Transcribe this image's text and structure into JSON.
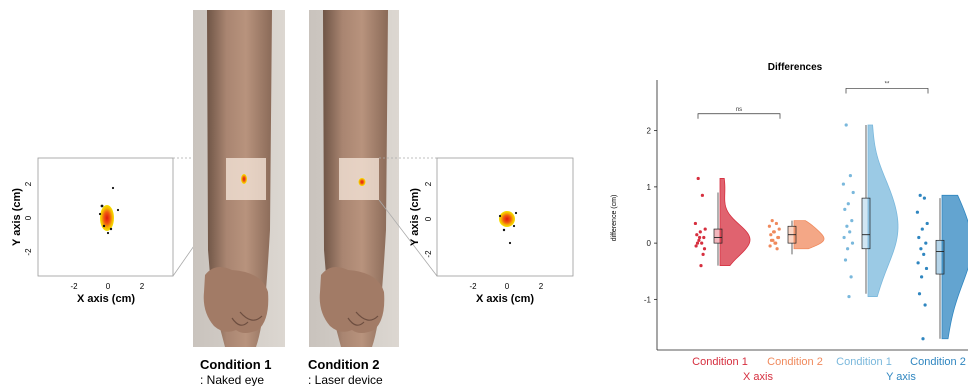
{
  "left_panel": {
    "scatter_left": {
      "ylabel": "Y axis (cm)",
      "xlabel": "X axis (cm)",
      "xticks": [
        "-2",
        "0",
        "2"
      ],
      "yticks": [
        "2",
        "0",
        "-2"
      ]
    },
    "scatter_right": {
      "ylabel": "Y axis (cm)",
      "xlabel": "X axis (cm)",
      "xticks": [
        "-2",
        "0",
        "2"
      ],
      "yticks": [
        "2",
        "0",
        "-2"
      ]
    },
    "condition1": {
      "title": "Condition 1",
      "subtitle": ": Naked eye"
    },
    "condition2": {
      "title": "Condition 2",
      "subtitle": ": Laser device"
    }
  },
  "chart_data": {
    "type": "raincloud",
    "title": "Differences",
    "ylabel": "difference (cm)",
    "ylim": [
      -1.9,
      2.9
    ],
    "yticks": [
      -1,
      0,
      1,
      2
    ],
    "grid": false,
    "groups": [
      {
        "label": "Condition 1",
        "axis": "X axis",
        "color": "#d62f3f",
        "points": [
          1.15,
          0.85,
          0.35,
          0.25,
          0.2,
          0.15,
          0.1,
          0.05,
          0.0,
          -0.05,
          -0.1,
          0.1,
          0.0,
          -0.2,
          -0.4
        ],
        "box": {
          "min": -0.4,
          "q1": 0.0,
          "median": 0.1,
          "q3": 0.25,
          "max": 0.9
        }
      },
      {
        "label": "Condition 2",
        "axis": "X axis",
        "color": "#f08a5d",
        "points": [
          0.4,
          0.35,
          0.3,
          0.25,
          0.2,
          0.15,
          0.1,
          0.05,
          0.0,
          -0.05,
          0.1,
          0.2,
          0.05,
          -0.1,
          0.0
        ],
        "box": {
          "min": -0.2,
          "q1": 0.0,
          "median": 0.15,
          "q3": 0.3,
          "max": 0.4
        }
      },
      {
        "label": "Condition 1",
        "axis": "Y axis",
        "color": "#7ab8dc",
        "points": [
          2.1,
          1.2,
          1.05,
          0.9,
          0.7,
          0.6,
          0.4,
          0.3,
          0.2,
          0.1,
          0.0,
          -0.1,
          -0.3,
          -0.6,
          -0.95
        ],
        "box": {
          "min": -0.9,
          "q1": -0.1,
          "median": 0.15,
          "q3": 0.8,
          "max": 2.1
        }
      },
      {
        "label": "Condition 2",
        "axis": "Y axis",
        "color": "#2f86c0",
        "points": [
          0.85,
          0.8,
          0.55,
          0.35,
          0.25,
          0.1,
          0.0,
          -0.1,
          -0.2,
          -0.35,
          -0.45,
          -0.6,
          -0.9,
          -1.1,
          -1.7
        ],
        "box": {
          "min": -1.7,
          "q1": -0.55,
          "median": -0.15,
          "q3": 0.05,
          "max": 0.8
        }
      }
    ],
    "significance": [
      {
        "groups": [
          0,
          1
        ],
        "label": "ns",
        "y": 2.3
      },
      {
        "groups": [
          2,
          3
        ],
        "label": "**",
        "y": 2.75
      }
    ],
    "axis_labels": [
      "X axis",
      "Y axis"
    ]
  }
}
